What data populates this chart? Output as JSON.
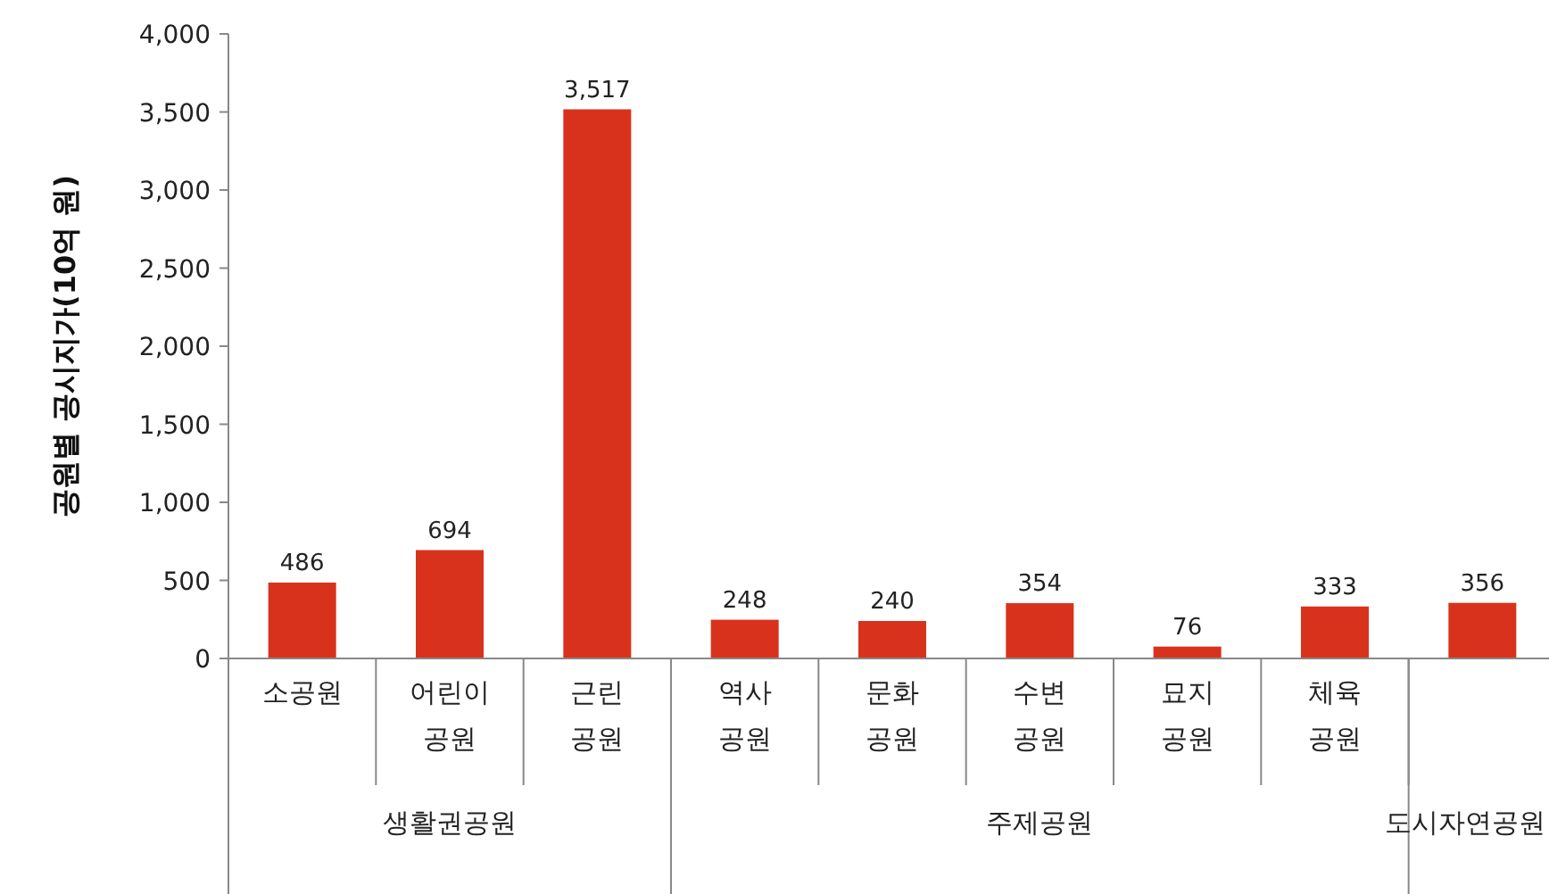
{
  "chart_data": {
    "type": "bar",
    "ylabel": "공원별 공시지가(10억 원)",
    "categories": [
      "소공원",
      "어린이 공원",
      "근린 공원",
      "역사 공원",
      "문화 공원",
      "수변 공원",
      "묘지 공원",
      "체육 공원",
      null
    ],
    "values": [
      486,
      694,
      3517,
      248,
      240,
      354,
      76,
      333,
      356
    ],
    "value_labels": [
      "486",
      "694",
      "3,517",
      "248",
      "240",
      "354",
      "76",
      "333",
      "356"
    ],
    "color": "#d9321c",
    "ylim": [
      0,
      4000
    ],
    "yticks": [
      {
        "value": 0,
        "label": "0"
      },
      {
        "value": 500,
        "label": "500"
      },
      {
        "value": 1000,
        "label": "1,000"
      },
      {
        "value": 1500,
        "label": "1,500"
      },
      {
        "value": 2000,
        "label": "2,000"
      },
      {
        "value": 2500,
        "label": "2,500"
      },
      {
        "value": 3000,
        "label": "3,000"
      },
      {
        "value": 3500,
        "label": "3,500"
      },
      {
        "value": 4000,
        "label": "4,000"
      }
    ],
    "annotations": [
      "생활권공원",
      "주제공원",
      "도시자연공원"
    ]
  }
}
